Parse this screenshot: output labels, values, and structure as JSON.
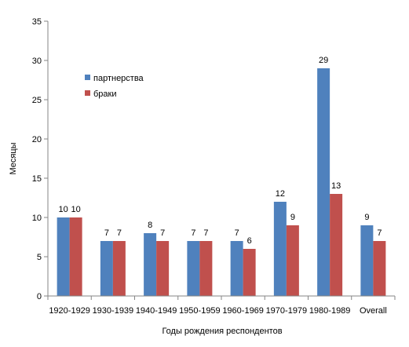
{
  "chart_data": {
    "type": "bar",
    "title": "",
    "xlabel": "Годы рождения респондентов",
    "ylabel": "Месяцы",
    "ylim": [
      0,
      35
    ],
    "yticks": [
      0,
      5,
      10,
      15,
      20,
      25,
      30,
      35
    ],
    "grid": false,
    "legend_position": "top-left",
    "categories": [
      "1920-1929",
      "1930-1939",
      "1940-1949",
      "1950-1959",
      "1960-1969",
      "1970-1979",
      "1980-1989",
      "Overall"
    ],
    "series": [
      {
        "name": "партнерства",
        "color": "#4f81bd",
        "values": [
          10,
          7,
          8,
          7,
          7,
          12,
          29,
          9
        ]
      },
      {
        "name": "браки",
        "color": "#c0504d",
        "values": [
          10,
          7,
          7,
          7,
          6,
          9,
          13,
          7
        ]
      }
    ]
  }
}
